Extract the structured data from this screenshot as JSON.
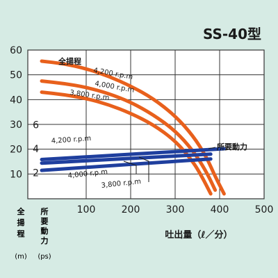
{
  "chart_data": {
    "type": "line",
    "title": "SS-40型",
    "xlabel": "吐出量（ℓ／分）",
    "x_ticks": [
      "100",
      "200",
      "300",
      "400",
      "500"
    ],
    "xlim": [
      0,
      500
    ],
    "head_axis": {
      "label_chars": [
        "全",
        "揚",
        "程"
      ],
      "unit": "(m)",
      "ticks": [
        "10",
        "20",
        "30",
        "40",
        "50",
        "60"
      ],
      "ylim": [
        0,
        60
      ]
    },
    "power_axis": {
      "label_chars": [
        "所",
        "要",
        "動",
        "力"
      ],
      "unit": "(ps)",
      "ticks": [
        "2",
        "4",
        "6"
      ],
      "ylim": [
        0,
        9
      ]
    },
    "annotations": {
      "head_curve_label": "全揚程",
      "power_curve_label": "所要動力"
    },
    "colors": {
      "background": "#d6ebe4",
      "plot_background": "#ffffff",
      "grid": "#333333",
      "head_curve": "#e8601c",
      "power_curve": "#1f3f9e"
    },
    "series": [
      {
        "group": "head",
        "name": "4,200 r.p.m",
        "x": [
          0,
          50,
          100,
          150,
          200,
          250,
          300,
          340,
          370,
          390,
          410
        ],
        "y": [
          55.5,
          54.5,
          52.5,
          49.5,
          45.5,
          40.5,
          33.5,
          25.5,
          17,
          9,
          2
        ]
      },
      {
        "group": "head",
        "name": "4,000 r.p.m",
        "x": [
          0,
          50,
          100,
          150,
          200,
          250,
          300,
          340,
          370,
          390
        ],
        "y": [
          47.5,
          46.5,
          45,
          42.5,
          39,
          34,
          27.5,
          19.5,
          11,
          3.5
        ]
      },
      {
        "group": "head",
        "name": "3,800 r.p.m",
        "x": [
          0,
          50,
          100,
          150,
          200,
          250,
          300,
          340,
          360,
          380
        ],
        "y": [
          43,
          42,
          40.5,
          38,
          34.5,
          30,
          23.5,
          15,
          9,
          2
        ]
      },
      {
        "group": "power",
        "name": "4,200 r.p.m",
        "x": [
          0,
          410
        ],
        "y": [
          3.1,
          4.0
        ]
      },
      {
        "group": "power",
        "name": "4,000 r.p.m",
        "x": [
          0,
          380
        ],
        "y": [
          2.8,
          3.55
        ]
      },
      {
        "group": "power",
        "name": "3,800 r.p.m",
        "x": [
          0,
          380
        ],
        "y": [
          2.2,
          3.15
        ]
      }
    ]
  }
}
